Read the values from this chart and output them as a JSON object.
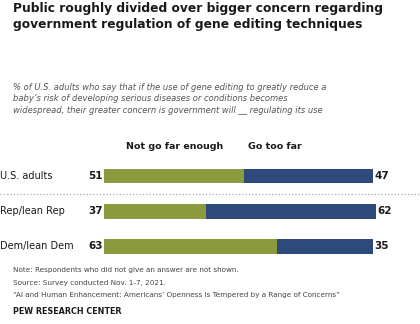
{
  "title": "Public roughly divided over bigger concern regarding\ngovernment regulation of gene editing techniques",
  "subtitle": "% of U.S. adults who say that if the use of gene editing to greatly reduce a\nbaby’s risk of developing serious diseases or conditions becomes\nwidespread, their greater concern is government will __ regulating its use",
  "categories": [
    "U.S. adults",
    "Rep/lean Rep",
    "Dem/lean Dem"
  ],
  "not_go_far_enough": [
    51,
    37,
    63
  ],
  "go_too_far": [
    47,
    62,
    35
  ],
  "color_not_go": "#8c9a3e",
  "color_go_too_far": "#2e4a7a",
  "legend_labels": [
    "Not go far enough",
    "Go too far"
  ],
  "note_lines": [
    "Note: Respondents who did not give an answer are not shown.",
    "Source: Survey conducted Nov. 1-7, 2021.",
    "“AI and Human Enhancement: Americans’ Openness Is Tempered by a Range of Concerns”"
  ],
  "pew_label": "PEW RESEARCH CENTER",
  "background_color": "#ffffff"
}
